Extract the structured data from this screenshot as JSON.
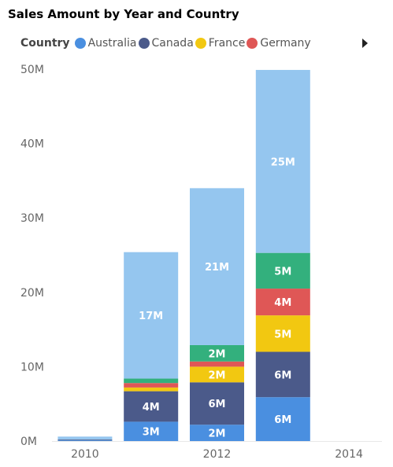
{
  "title": "Sales Amount by Year and Country",
  "legend": {
    "title": "Country",
    "items": [
      {
        "label": "Australia",
        "color": "#4a8fe0"
      },
      {
        "label": "Canada",
        "color": "#4b5a8a"
      },
      {
        "label": "France",
        "color": "#f2c811"
      },
      {
        "label": "Germany",
        "color": "#df5756"
      }
    ]
  },
  "chart_data": {
    "type": "bar",
    "stacked": true,
    "title": "Sales Amount by Year and Country",
    "legend_title": "Country",
    "x": [
      2010,
      2011,
      2012,
      2013,
      2014
    ],
    "x_tick_labels": [
      "2010",
      "2012",
      "2014"
    ],
    "y_tick_labels": [
      "0M",
      "10M",
      "20M",
      "30M",
      "40M",
      "50M"
    ],
    "ylim": [
      0,
      50
    ],
    "y_unit": "M",
    "grid": false,
    "series": [
      {
        "name": "Australia",
        "color": "#4a8fe0",
        "values": [
          0.1,
          2.6,
          2.2,
          5.9,
          0
        ],
        "labels": [
          "",
          "3M",
          "2M",
          "6M",
          ""
        ]
      },
      {
        "name": "Canada",
        "color": "#4b5a8a",
        "values": [
          0.1,
          4.1,
          5.7,
          6.1,
          0
        ],
        "labels": [
          "",
          "4M",
          "6M",
          "6M",
          ""
        ]
      },
      {
        "name": "France",
        "color": "#f2c811",
        "values": [
          0,
          0.5,
          2.1,
          4.9,
          0
        ],
        "labels": [
          "",
          "",
          "2M",
          "5M",
          ""
        ]
      },
      {
        "name": "Germany",
        "color": "#df5756",
        "values": [
          0,
          0.6,
          0.7,
          3.6,
          0
        ],
        "labels": [
          "",
          "",
          "",
          "4M",
          ""
        ]
      },
      {
        "color": "#33b07d",
        "values": [
          0,
          0.6,
          2.2,
          4.8,
          0
        ],
        "labels": [
          "",
          "",
          "2M",
          "5M",
          ""
        ]
      },
      {
        "color": "#95c6ef",
        "values": [
          0.4,
          17.0,
          21.1,
          24.6,
          0
        ],
        "labels": [
          "",
          "17M",
          "21M",
          "25M",
          ""
        ]
      }
    ]
  }
}
